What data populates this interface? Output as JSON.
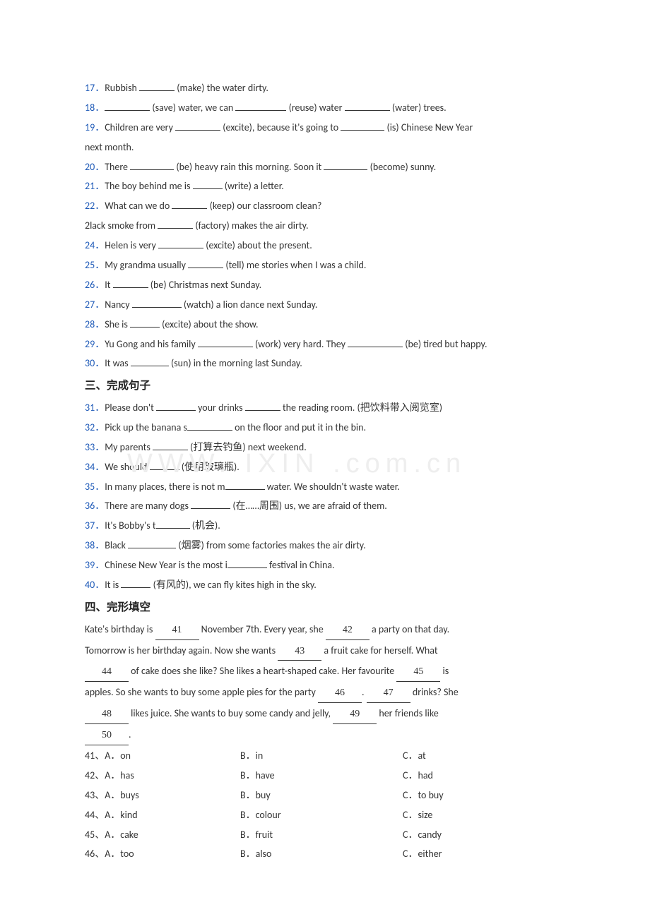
{
  "watermark": "WWW.       IXIN  .com.cn",
  "lines": [
    {
      "num": "17．",
      "segs": [
        "Rubbish ",
        {
          "b": 50
        },
        " (make) the water dirty."
      ]
    },
    {
      "num": "18．",
      "segs": [
        {
          "b": 64
        },
        " (save) water, we can ",
        {
          "b": 72
        },
        " (reuse) water ",
        {
          "b": 64
        },
        " (water) trees."
      ]
    },
    {
      "num": "19．",
      "segs": [
        "Children are very ",
        {
          "b": 64
        },
        " (excite), because it's going to ",
        {
          "b": 62
        },
        " (is) Chinese New Year"
      ]
    },
    {
      "cont": true,
      "segs": [
        "next month."
      ]
    },
    {
      "num": "20．",
      "segs": [
        "There ",
        {
          "b": 62
        },
        " (be) heavy rain this morning. Soon it ",
        {
          "b": 62
        },
        " (become) sunny."
      ]
    },
    {
      "num": "21．",
      "segs": [
        "The boy behind me is ",
        {
          "b": 42
        },
        " (write) a letter."
      ]
    },
    {
      "num": "22．",
      "segs": [
        "What can we do ",
        {
          "b": 50
        },
        " (keep) our classroom clean?"
      ]
    },
    {
      "cont": true,
      "segs": [
        "2lack smoke from ",
        {
          "b": 50
        },
        " (factory) makes the air dirty."
      ]
    },
    {
      "num": "24．",
      "segs": [
        "Helen is very ",
        {
          "b": 64
        },
        " (excite) about the present."
      ]
    },
    {
      "num": "25．",
      "segs": [
        "My grandma usually ",
        {
          "b": 50
        },
        " (tell) me stories when I was a child."
      ]
    },
    {
      "num": "26．",
      "segs": [
        "It ",
        {
          "b": 50
        },
        " (be) Christmas next Sunday."
      ]
    },
    {
      "num": "27．",
      "segs": [
        "Nancy ",
        {
          "b": 70
        },
        " (watch) a lion dance next Sunday."
      ]
    },
    {
      "num": "28．",
      "segs": [
        "She is ",
        {
          "b": 42
        },
        " (excite) about the show."
      ]
    },
    {
      "num": "29．",
      "segs": [
        "Yu Gong and his family ",
        {
          "b": 78
        },
        " (work) very hard. They ",
        {
          "b": 78
        },
        " (be) tired but happy."
      ]
    },
    {
      "num": "30．",
      "segs": [
        "It was ",
        {
          "b": 54
        },
        " (sun) in the morning last Sunday."
      ]
    }
  ],
  "section3": "三、完成句子",
  "lines3": [
    {
      "num": "31．",
      "segs": [
        "Please don't ",
        {
          "b": 56
        },
        " your drinks ",
        {
          "b": 50
        },
        " the reading room. (把饮料带入阅览室)"
      ]
    },
    {
      "num": "32．",
      "segs": [
        "Pick up the banana s",
        {
          "b": 64
        },
        " on the floor and put it in the bin."
      ]
    },
    {
      "num": "33．",
      "segs": [
        "My parents ",
        {
          "b": 50
        },
        " (打算去钓鱼) next weekend."
      ]
    },
    {
      "num": "34．",
      "segs": [
        "We should ",
        {
          "b": 42
        },
        " (使用玻璃瓶)."
      ]
    },
    {
      "num": "35．",
      "segs": [
        "In many places, there is not m",
        {
          "b": 56
        },
        " water. We shouldn't waste water."
      ]
    },
    {
      "num": "36．",
      "segs": [
        "There are many dogs ",
        {
          "b": 56
        },
        " (在……周围) us, we are afraid of them."
      ]
    },
    {
      "num": "37．",
      "segs": [
        "It's Bobby's t",
        {
          "b": 48
        },
        " (机会)."
      ]
    },
    {
      "num": "38．",
      "segs": [
        "Black ",
        {
          "b": 68
        },
        " (烟雾) from some factories makes the air dirty."
      ]
    },
    {
      "num": "39．",
      "segs": [
        "Chinese New Year is the most i",
        {
          "b": 56
        },
        " festival in China."
      ]
    },
    {
      "num": "40．",
      "segs": [
        "It is ",
        {
          "b": 42
        },
        " (有风的), we can fly kites high in the sky."
      ]
    }
  ],
  "section4": "四、完形填空",
  "passage": [
    {
      "segs": [
        "Kate's birthday is ",
        {
          "bn": 62,
          "n": "41"
        },
        " November 7th. Every year, she ",
        {
          "bn": 62,
          "n": "42"
        },
        " a party on that day."
      ]
    },
    {
      "segs": [
        "Tomorrow is her birthday again. Now she wants ",
        {
          "bn": 62,
          "n": "43"
        },
        " a fruit cake for herself. What"
      ]
    },
    {
      "segs": [
        {
          "bn": 62,
          "n": "44"
        },
        " of cake does she like? She likes a heart-shaped cake. Her favourite ",
        {
          "bn": 62,
          "n": "45"
        },
        " is"
      ]
    },
    {
      "segs": [
        "apples. So she wants to buy some apple pies for the party ",
        {
          "bn": 62,
          "n": "46"
        },
        ". ",
        {
          "bn": 62,
          "n": "47"
        },
        " drinks? She"
      ]
    },
    {
      "segs": [
        {
          "bn": 62,
          "n": "48"
        },
        " likes juice. She wants to buy some candy and jelly, ",
        {
          "bn": 62,
          "n": "49"
        },
        " her friends like"
      ]
    },
    {
      "segs": [
        {
          "bn": 62,
          "n": "50"
        },
        "."
      ]
    }
  ],
  "mcq": [
    {
      "n": "41",
      "a": "A．on",
      "b": "B．in",
      "c": "C．at"
    },
    {
      "n": "42",
      "a": "A．has",
      "b": "B．have",
      "c": "C．had"
    },
    {
      "n": "43",
      "a": "A．buys",
      "b": "B．buy",
      "c": "C．to buy"
    },
    {
      "n": "44",
      "a": "A．kind",
      "b": "B．colour",
      "c": "C．size"
    },
    {
      "n": "45",
      "a": "A．cake",
      "b": "B．fruit",
      "c": "C．candy"
    },
    {
      "n": "46",
      "a": "A．too",
      "b": "B．also",
      "c": "C．either"
    }
  ]
}
